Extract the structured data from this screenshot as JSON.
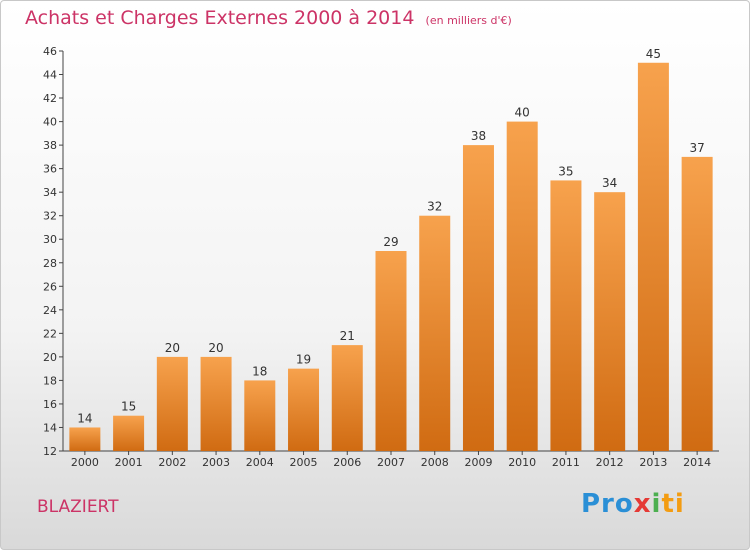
{
  "title": "Achats et Charges Externes 2000 à 2014",
  "unit": "(en milliers d'€)",
  "commune": "BLAZIERT",
  "logo": "Proxiti",
  "colors": {
    "bar_top": "#f7a24d",
    "bar_bottom": "#d06b12",
    "title": "#cc3366"
  },
  "chart_data": {
    "type": "bar",
    "categories": [
      "2000",
      "2001",
      "2002",
      "2003",
      "2004",
      "2005",
      "2006",
      "2007",
      "2008",
      "2009",
      "2010",
      "2011",
      "2012",
      "2013",
      "2014"
    ],
    "values": [
      14,
      15,
      20,
      20,
      18,
      19,
      21,
      29,
      32,
      38,
      40,
      35,
      34,
      45,
      37
    ],
    "ylim": [
      12,
      46
    ],
    "yticks": [
      12,
      14,
      16,
      18,
      20,
      22,
      24,
      26,
      28,
      30,
      32,
      34,
      36,
      38,
      40,
      42,
      44,
      46
    ],
    "grid": false,
    "data_labels": true
  }
}
